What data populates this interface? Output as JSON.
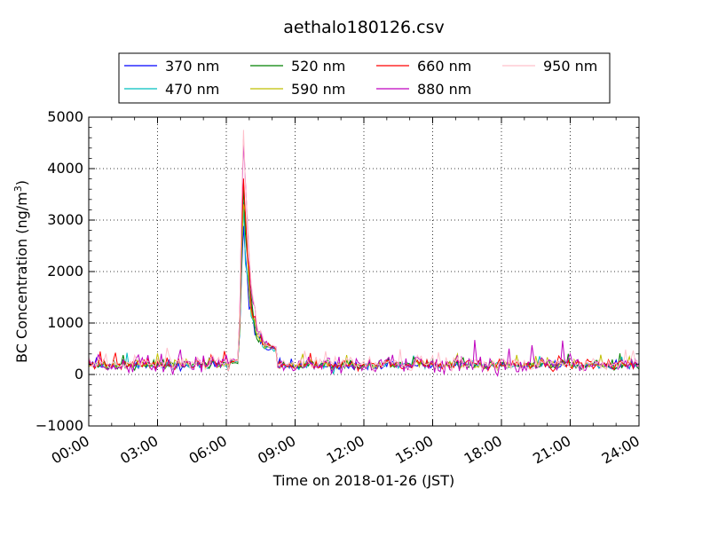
{
  "chart_data": {
    "type": "line",
    "title": "aethalo180126.csv",
    "xlabel": "Time on 2018-01-26 (JST)",
    "ylabel": {
      "main": "BC Concentration (ng/m",
      "sup": "3",
      "tail": ")"
    },
    "x_unit": "hours",
    "xlim": [
      0,
      24
    ],
    "ylim": [
      -1000,
      5000
    ],
    "xticks": [
      {
        "value": 0,
        "label": "00:00"
      },
      {
        "value": 3,
        "label": "03:00"
      },
      {
        "value": 6,
        "label": "06:00"
      },
      {
        "value": 9,
        "label": "09:00"
      },
      {
        "value": 12,
        "label": "12:00"
      },
      {
        "value": 15,
        "label": "15:00"
      },
      {
        "value": 18,
        "label": "18:00"
      },
      {
        "value": 21,
        "label": "21:00"
      },
      {
        "value": 24,
        "label": "24:00"
      }
    ],
    "yticks": [
      {
        "value": -1000,
        "label": "−1000"
      },
      {
        "value": 0,
        "label": "0"
      },
      {
        "value": 1000,
        "label": "1000"
      },
      {
        "value": 2000,
        "label": "2000"
      },
      {
        "value": 3000,
        "label": "3000"
      },
      {
        "value": 4000,
        "label": "4000"
      },
      {
        "value": 5000,
        "label": "5000"
      }
    ],
    "grid": true,
    "legend_position": "top",
    "series": [
      {
        "name": "370 nm",
        "color": "#0000ff",
        "peak": 2750,
        "baseline": 180,
        "noise": 70
      },
      {
        "name": "470 nm",
        "color": "#00bfbf",
        "peak": 2900,
        "baseline": 185,
        "noise": 75
      },
      {
        "name": "520 nm",
        "color": "#008000",
        "peak": 3050,
        "baseline": 190,
        "noise": 80
      },
      {
        "name": "590 nm",
        "color": "#bfbf00",
        "peak": 3300,
        "baseline": 195,
        "noise": 85
      },
      {
        "name": "660 nm",
        "color": "#ff0000",
        "peak": 3900,
        "baseline": 200,
        "noise": 95
      },
      {
        "name": "880 nm",
        "color": "#bf00bf",
        "peak": 4450,
        "baseline": 200,
        "noise": 150
      },
      {
        "name": "950 nm",
        "color": "#ffc0cb",
        "peak": 4700,
        "baseline": 210,
        "noise": 120
      }
    ],
    "event": {
      "start": 6.1,
      "rise": 6.55,
      "peak_time": 6.72,
      "decay_end": 8.2
    }
  }
}
